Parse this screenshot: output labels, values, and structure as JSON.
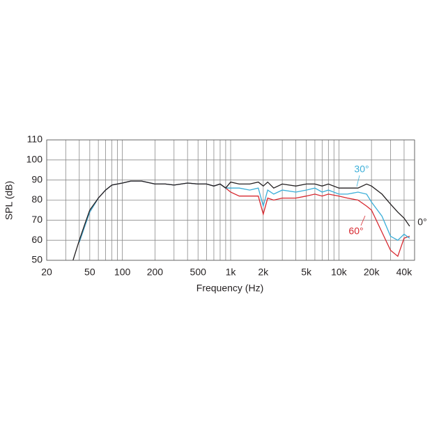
{
  "chart_data": {
    "type": "line",
    "log_x": true,
    "grid": true,
    "xlabel": "Frequency (Hz)",
    "ylabel": "SPL (dB)",
    "xlim": [
      20,
      50000
    ],
    "ylim": [
      50,
      110
    ],
    "xticks": [
      20,
      50,
      100,
      200,
      500,
      {
        "value": 1000,
        "label": "1k"
      },
      {
        "value": 2000,
        "label": "2k"
      },
      {
        "value": 5000,
        "label": "5k"
      },
      {
        "value": 10000,
        "label": "10k"
      },
      {
        "value": 20000,
        "label": "20k"
      },
      {
        "value": 40000,
        "label": "40k"
      }
    ],
    "xgrid": [
      20,
      30,
      40,
      50,
      60,
      70,
      80,
      90,
      100,
      200,
      300,
      400,
      500,
      600,
      700,
      800,
      900,
      1000,
      2000,
      3000,
      4000,
      5000,
      6000,
      7000,
      8000,
      9000,
      10000,
      20000,
      30000,
      40000,
      50000
    ],
    "yticks": [
      50,
      60,
      70,
      80,
      90,
      100,
      110
    ],
    "x": [
      35,
      40,
      45,
      50,
      60,
      70,
      80,
      100,
      120,
      150,
      200,
      250,
      300,
      400,
      500,
      600,
      700,
      800,
      900,
      1000,
      1200,
      1500,
      1800,
      2000,
      2200,
      2500,
      3000,
      4000,
      5000,
      6000,
      7000,
      8000,
      10000,
      12000,
      15000,
      18000,
      20000,
      25000,
      30000,
      35000,
      40000,
      45000
    ],
    "series": [
      {
        "name": "0°",
        "color": "#231f20",
        "values": [
          50,
          60,
          68,
          75,
          81,
          85,
          87.5,
          88.5,
          89.5,
          89.5,
          88,
          88,
          87.5,
          88.5,
          88,
          88,
          87,
          88,
          86,
          89,
          88,
          88,
          89,
          87,
          89,
          86,
          88,
          87,
          88,
          88,
          87,
          88,
          86,
          86,
          86,
          88,
          87,
          83,
          78,
          74,
          71,
          67
        ]
      },
      {
        "name": "30°",
        "color": "#3aaed8",
        "values": [
          null,
          59,
          67,
          74,
          81,
          85,
          87.5,
          88.5,
          89.5,
          89.5,
          88,
          88,
          87.5,
          88.5,
          88,
          88,
          87,
          88,
          86,
          86,
          86,
          85,
          86,
          77,
          85,
          83,
          85,
          84,
          85,
          86,
          84,
          85,
          83,
          83,
          84,
          83,
          79,
          72,
          62,
          60,
          63,
          61
        ]
      },
      {
        "name": "60°",
        "color": "#d7282f",
        "values": [
          null,
          59,
          67,
          74,
          81,
          85,
          87.5,
          88.5,
          89.5,
          89.5,
          88,
          88,
          87.5,
          88.5,
          88,
          88,
          87,
          88,
          86,
          84,
          82,
          82,
          82,
          73,
          81,
          80,
          81,
          81,
          82,
          83,
          82,
          83,
          82,
          81,
          80,
          77,
          75,
          64,
          55,
          52,
          61,
          62
        ]
      }
    ]
  }
}
